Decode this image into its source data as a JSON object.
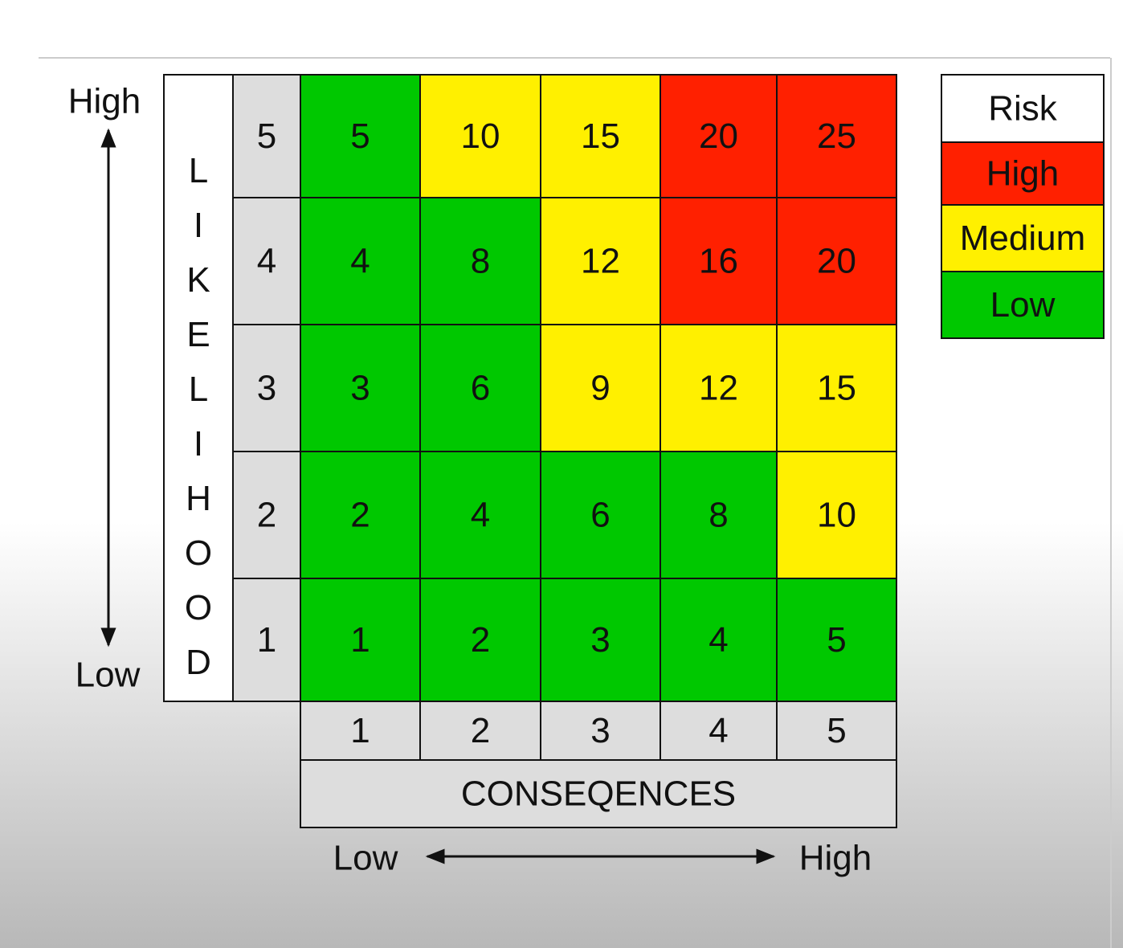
{
  "likelihood": {
    "title": "LIKELIHOOD",
    "high": "High",
    "low": "Low",
    "levels": [
      5,
      4,
      3,
      2,
      1
    ]
  },
  "matrix": {
    "rows": [
      [
        5,
        10,
        15,
        20,
        25
      ],
      [
        4,
        8,
        12,
        16,
        20
      ],
      [
        3,
        6,
        9,
        12,
        15
      ],
      [
        2,
        4,
        6,
        8,
        10
      ],
      [
        1,
        2,
        3,
        4,
        5
      ]
    ],
    "colors": [
      [
        "#00c800",
        "#fff000",
        "#fff000",
        "#ff2000",
        "#ff2000"
      ],
      [
        "#00c800",
        "#00c800",
        "#fff000",
        "#ff2000",
        "#ff2000"
      ],
      [
        "#00c800",
        "#00c800",
        "#fff000",
        "#fff000",
        "#fff000"
      ],
      [
        "#00c800",
        "#00c800",
        "#00c800",
        "#00c800",
        "#fff000"
      ],
      [
        "#00c800",
        "#00c800",
        "#00c800",
        "#00c800",
        "#00c800"
      ]
    ]
  },
  "consequences": {
    "title": "CONSEQENCES",
    "low": "Low",
    "high": "High",
    "levels": [
      1,
      2,
      3,
      4,
      5
    ]
  },
  "legend": {
    "title": "Risk",
    "items": [
      {
        "label": "High",
        "color": "#ff2000"
      },
      {
        "label": "Medium",
        "color": "#fff000"
      },
      {
        "label": "Low",
        "color": "#00c800"
      }
    ]
  }
}
